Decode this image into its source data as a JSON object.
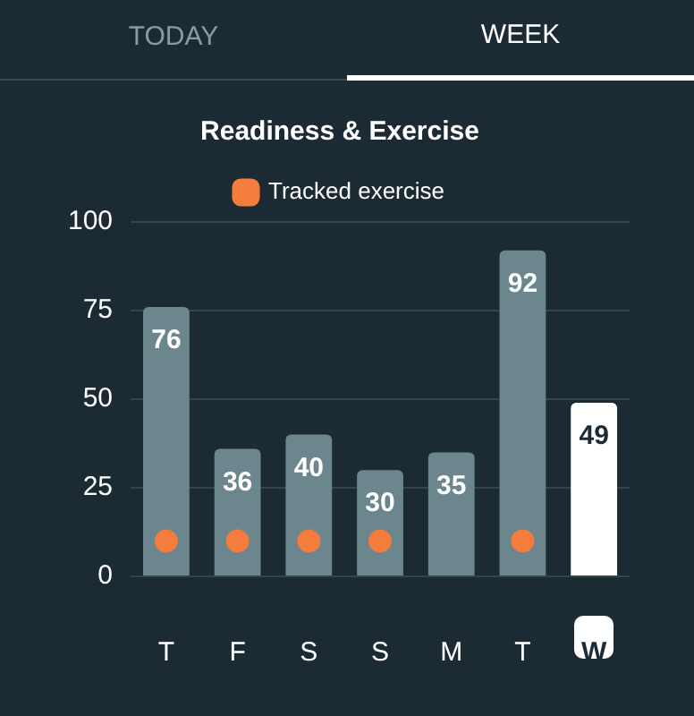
{
  "chart_data": {
    "type": "bar",
    "title": "Readiness & Exercise",
    "annotations": [
      "TODAY",
      "WEEK"
    ],
    "categories": [
      "T",
      "F",
      "S",
      "S",
      "M",
      "T",
      "W"
    ],
    "series": [
      {
        "colors": [
          "#6b868c",
          "#6b868c",
          "#6b868c",
          "#6b868c",
          "#6b868c",
          "#6b868c",
          "#ffffff"
        ],
        "values": [
          76,
          36,
          40,
          30,
          35,
          92,
          49
        ],
        "value_labels": [
          "76",
          "36",
          "40",
          "30",
          "35",
          "92",
          "49"
        ]
      },
      {
        "type": "scatter",
        "name": "Tracked exercise",
        "color": "#f47c3c",
        "values": [
          10,
          10,
          10,
          10,
          null,
          10,
          null
        ]
      }
    ],
    "ylim": [
      0,
      100
    ],
    "yticks": [
      0,
      25,
      50,
      75,
      100
    ],
    "grid": "y",
    "legend": "top",
    "marker": "circle"
  }
}
